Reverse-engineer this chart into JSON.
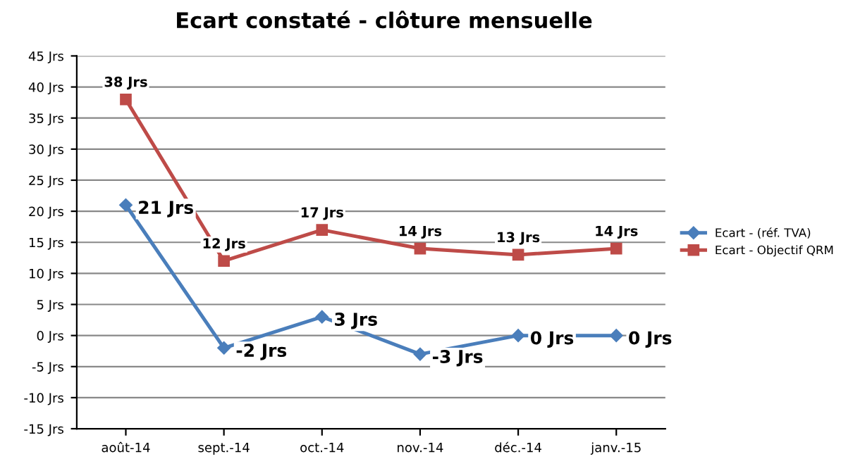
{
  "chart_data": {
    "type": "line",
    "title": "Ecart constaté - clôture mensuelle",
    "categories": [
      "août-14",
      "sept.-14",
      "oct.-14",
      "nov.-14",
      "déc.-14",
      "janv.-15"
    ],
    "series": [
      {
        "name": "Ecart - (réf. TVA)",
        "color": "#4a7ebb",
        "marker": "diamond",
        "values": [
          21,
          -2,
          3,
          -3,
          0,
          0
        ],
        "value_labels": [
          "21 Jrs",
          "-2 Jrs",
          "3 Jrs",
          "-3 Jrs",
          "0 Jrs",
          "0 Jrs"
        ]
      },
      {
        "name": "Ecart - Objectif QRM",
        "color": "#be4b48",
        "marker": "square",
        "values": [
          38,
          12,
          17,
          14,
          13,
          14
        ],
        "value_labels": [
          "38 Jrs",
          "12 Jrs",
          "17 Jrs",
          "14 Jrs",
          "13 Jrs",
          "14 Jrs"
        ]
      }
    ],
    "ylim": [
      -15,
      45
    ],
    "yticks": [
      {
        "value": -15,
        "label": "-15 Jrs"
      },
      {
        "value": -10,
        "label": "-10 Jrs"
      },
      {
        "value": -5,
        "label": "-5 Jrs"
      },
      {
        "value": 0,
        "label": "0 Jrs"
      },
      {
        "value": 5,
        "label": "5 Jrs"
      },
      {
        "value": 10,
        "label": "10 Jrs"
      },
      {
        "value": 15,
        "label": "15 Jrs"
      },
      {
        "value": 20,
        "label": "20 Jrs"
      },
      {
        "value": 25,
        "label": "25 Jrs"
      },
      {
        "value": 30,
        "label": "30 Jrs"
      },
      {
        "value": 35,
        "label": "35 Jrs"
      },
      {
        "value": 40,
        "label": "40 Jrs"
      },
      {
        "value": 45,
        "label": "45 Jrs"
      }
    ],
    "grid": "y",
    "legend": "right",
    "line_style": "solid"
  }
}
